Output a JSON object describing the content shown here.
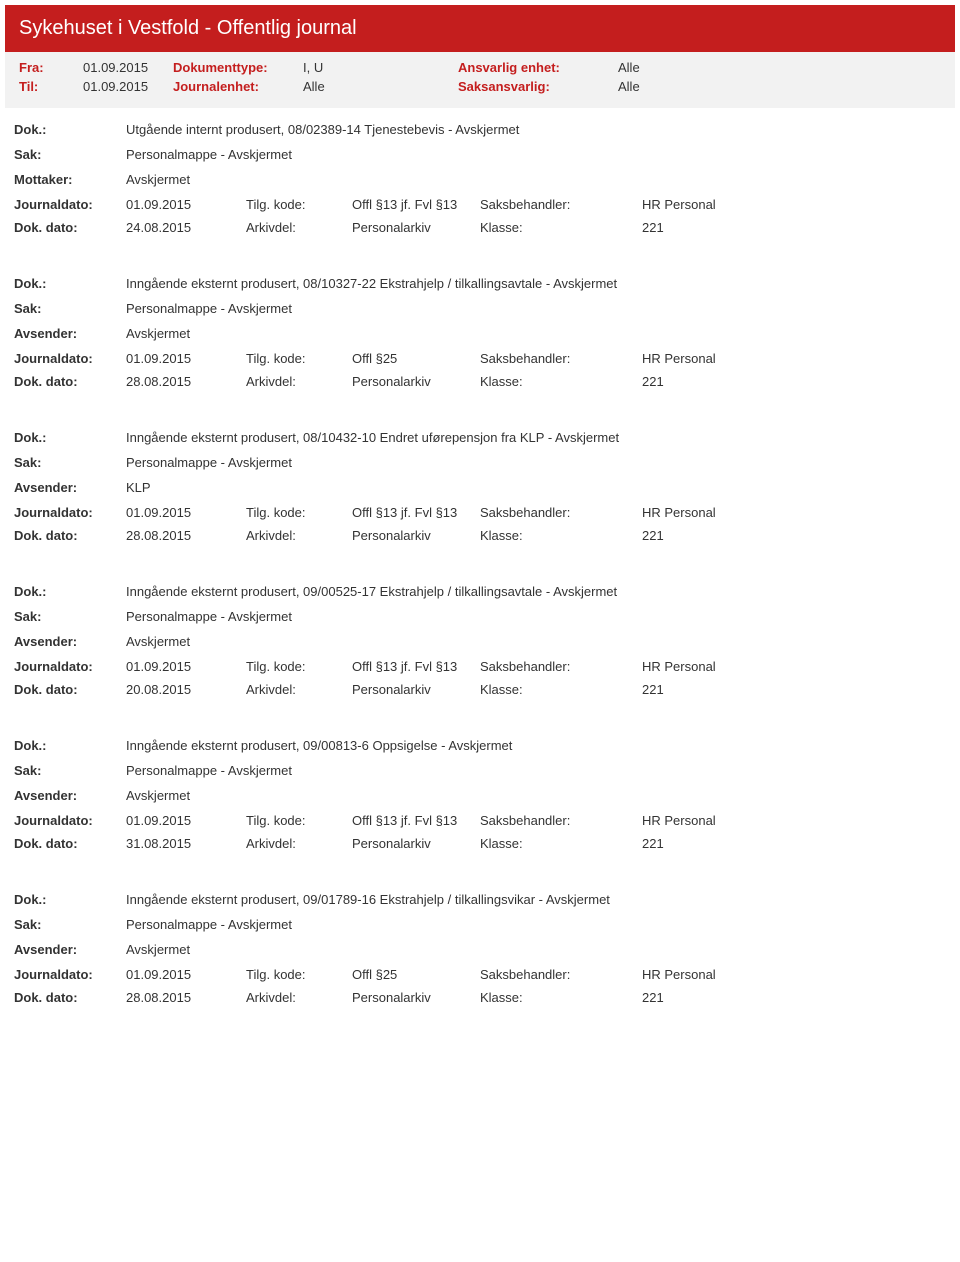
{
  "header": {
    "title": "Sykehuset i Vestfold - Offentlig journal"
  },
  "filter": {
    "fra_label": "Fra:",
    "fra_value": "01.09.2015",
    "til_label": "Til:",
    "til_value": "01.09.2015",
    "doktype_label": "Dokumenttype:",
    "doktype_value": "I, U",
    "journalenhet_label": "Journalenhet:",
    "journalenhet_value": "Alle",
    "ansvarlig_label": "Ansvarlig enhet:",
    "ansvarlig_value": "Alle",
    "saksansvarlig_label": "Saksansvarlig:",
    "saksansvarlig_value": "Alle"
  },
  "labels": {
    "dok": "Dok.:",
    "sak": "Sak:",
    "mottaker": "Mottaker:",
    "avsender": "Avsender:",
    "journaldato": "Journaldato:",
    "dokdato": "Dok. dato:",
    "tilgkode": "Tilg. kode:",
    "arkivdel": "Arkivdel:",
    "saksbehandler": "Saksbehandler:",
    "klasse": "Klasse:"
  },
  "entries": [
    {
      "dok": "Utgående internt produsert, 08/02389-14 Tjenestebevis - Avskjermet",
      "sak": "Personalmappe - Avskjermet",
      "party_label": "Mottaker:",
      "party_value": "Avskjermet",
      "journaldato": "01.09.2015",
      "tilgkode": "Offl §13 jf. Fvl §13",
      "saksbehandler": "HR Personal",
      "dokdato": "24.08.2015",
      "arkivdel": "Personalarkiv",
      "klasse": "221"
    },
    {
      "dok": "Inngående eksternt produsert, 08/10327-22 Ekstrahjelp / tilkallingsavtale - Avskjermet",
      "sak": "Personalmappe - Avskjermet",
      "party_label": "Avsender:",
      "party_value": "Avskjermet",
      "journaldato": "01.09.2015",
      "tilgkode": "Offl §25",
      "saksbehandler": "HR Personal",
      "dokdato": "28.08.2015",
      "arkivdel": "Personalarkiv",
      "klasse": "221"
    },
    {
      "dok": "Inngående eksternt produsert, 08/10432-10 Endret uførepensjon fra KLP - Avskjermet",
      "sak": "Personalmappe - Avskjermet",
      "party_label": "Avsender:",
      "party_value": "KLP",
      "journaldato": "01.09.2015",
      "tilgkode": "Offl §13 jf. Fvl §13",
      "saksbehandler": "HR Personal",
      "dokdato": "28.08.2015",
      "arkivdel": "Personalarkiv",
      "klasse": "221"
    },
    {
      "dok": "Inngående eksternt produsert, 09/00525-17 Ekstrahjelp / tilkallingsavtale - Avskjermet",
      "sak": "Personalmappe - Avskjermet",
      "party_label": "Avsender:",
      "party_value": "Avskjermet",
      "journaldato": "01.09.2015",
      "tilgkode": "Offl §13 jf. Fvl §13",
      "saksbehandler": "HR Personal",
      "dokdato": "20.08.2015",
      "arkivdel": "Personalarkiv",
      "klasse": "221"
    },
    {
      "dok": "Inngående eksternt produsert, 09/00813-6 Oppsigelse - Avskjermet",
      "sak": "Personalmappe - Avskjermet",
      "party_label": "Avsender:",
      "party_value": "Avskjermet",
      "journaldato": "01.09.2015",
      "tilgkode": "Offl §13 jf. Fvl §13",
      "saksbehandler": "HR Personal",
      "dokdato": "31.08.2015",
      "arkivdel": "Personalarkiv",
      "klasse": "221"
    },
    {
      "dok": "Inngående eksternt produsert, 09/01789-16 Ekstrahjelp / tilkallingsvikar - Avskjermet",
      "sak": "Personalmappe - Avskjermet",
      "party_label": "Avsender:",
      "party_value": "Avskjermet",
      "journaldato": "01.09.2015",
      "tilgkode": "Offl §25",
      "saksbehandler": "HR Personal",
      "dokdato": "28.08.2015",
      "arkivdel": "Personalarkiv",
      "klasse": "221"
    }
  ]
}
